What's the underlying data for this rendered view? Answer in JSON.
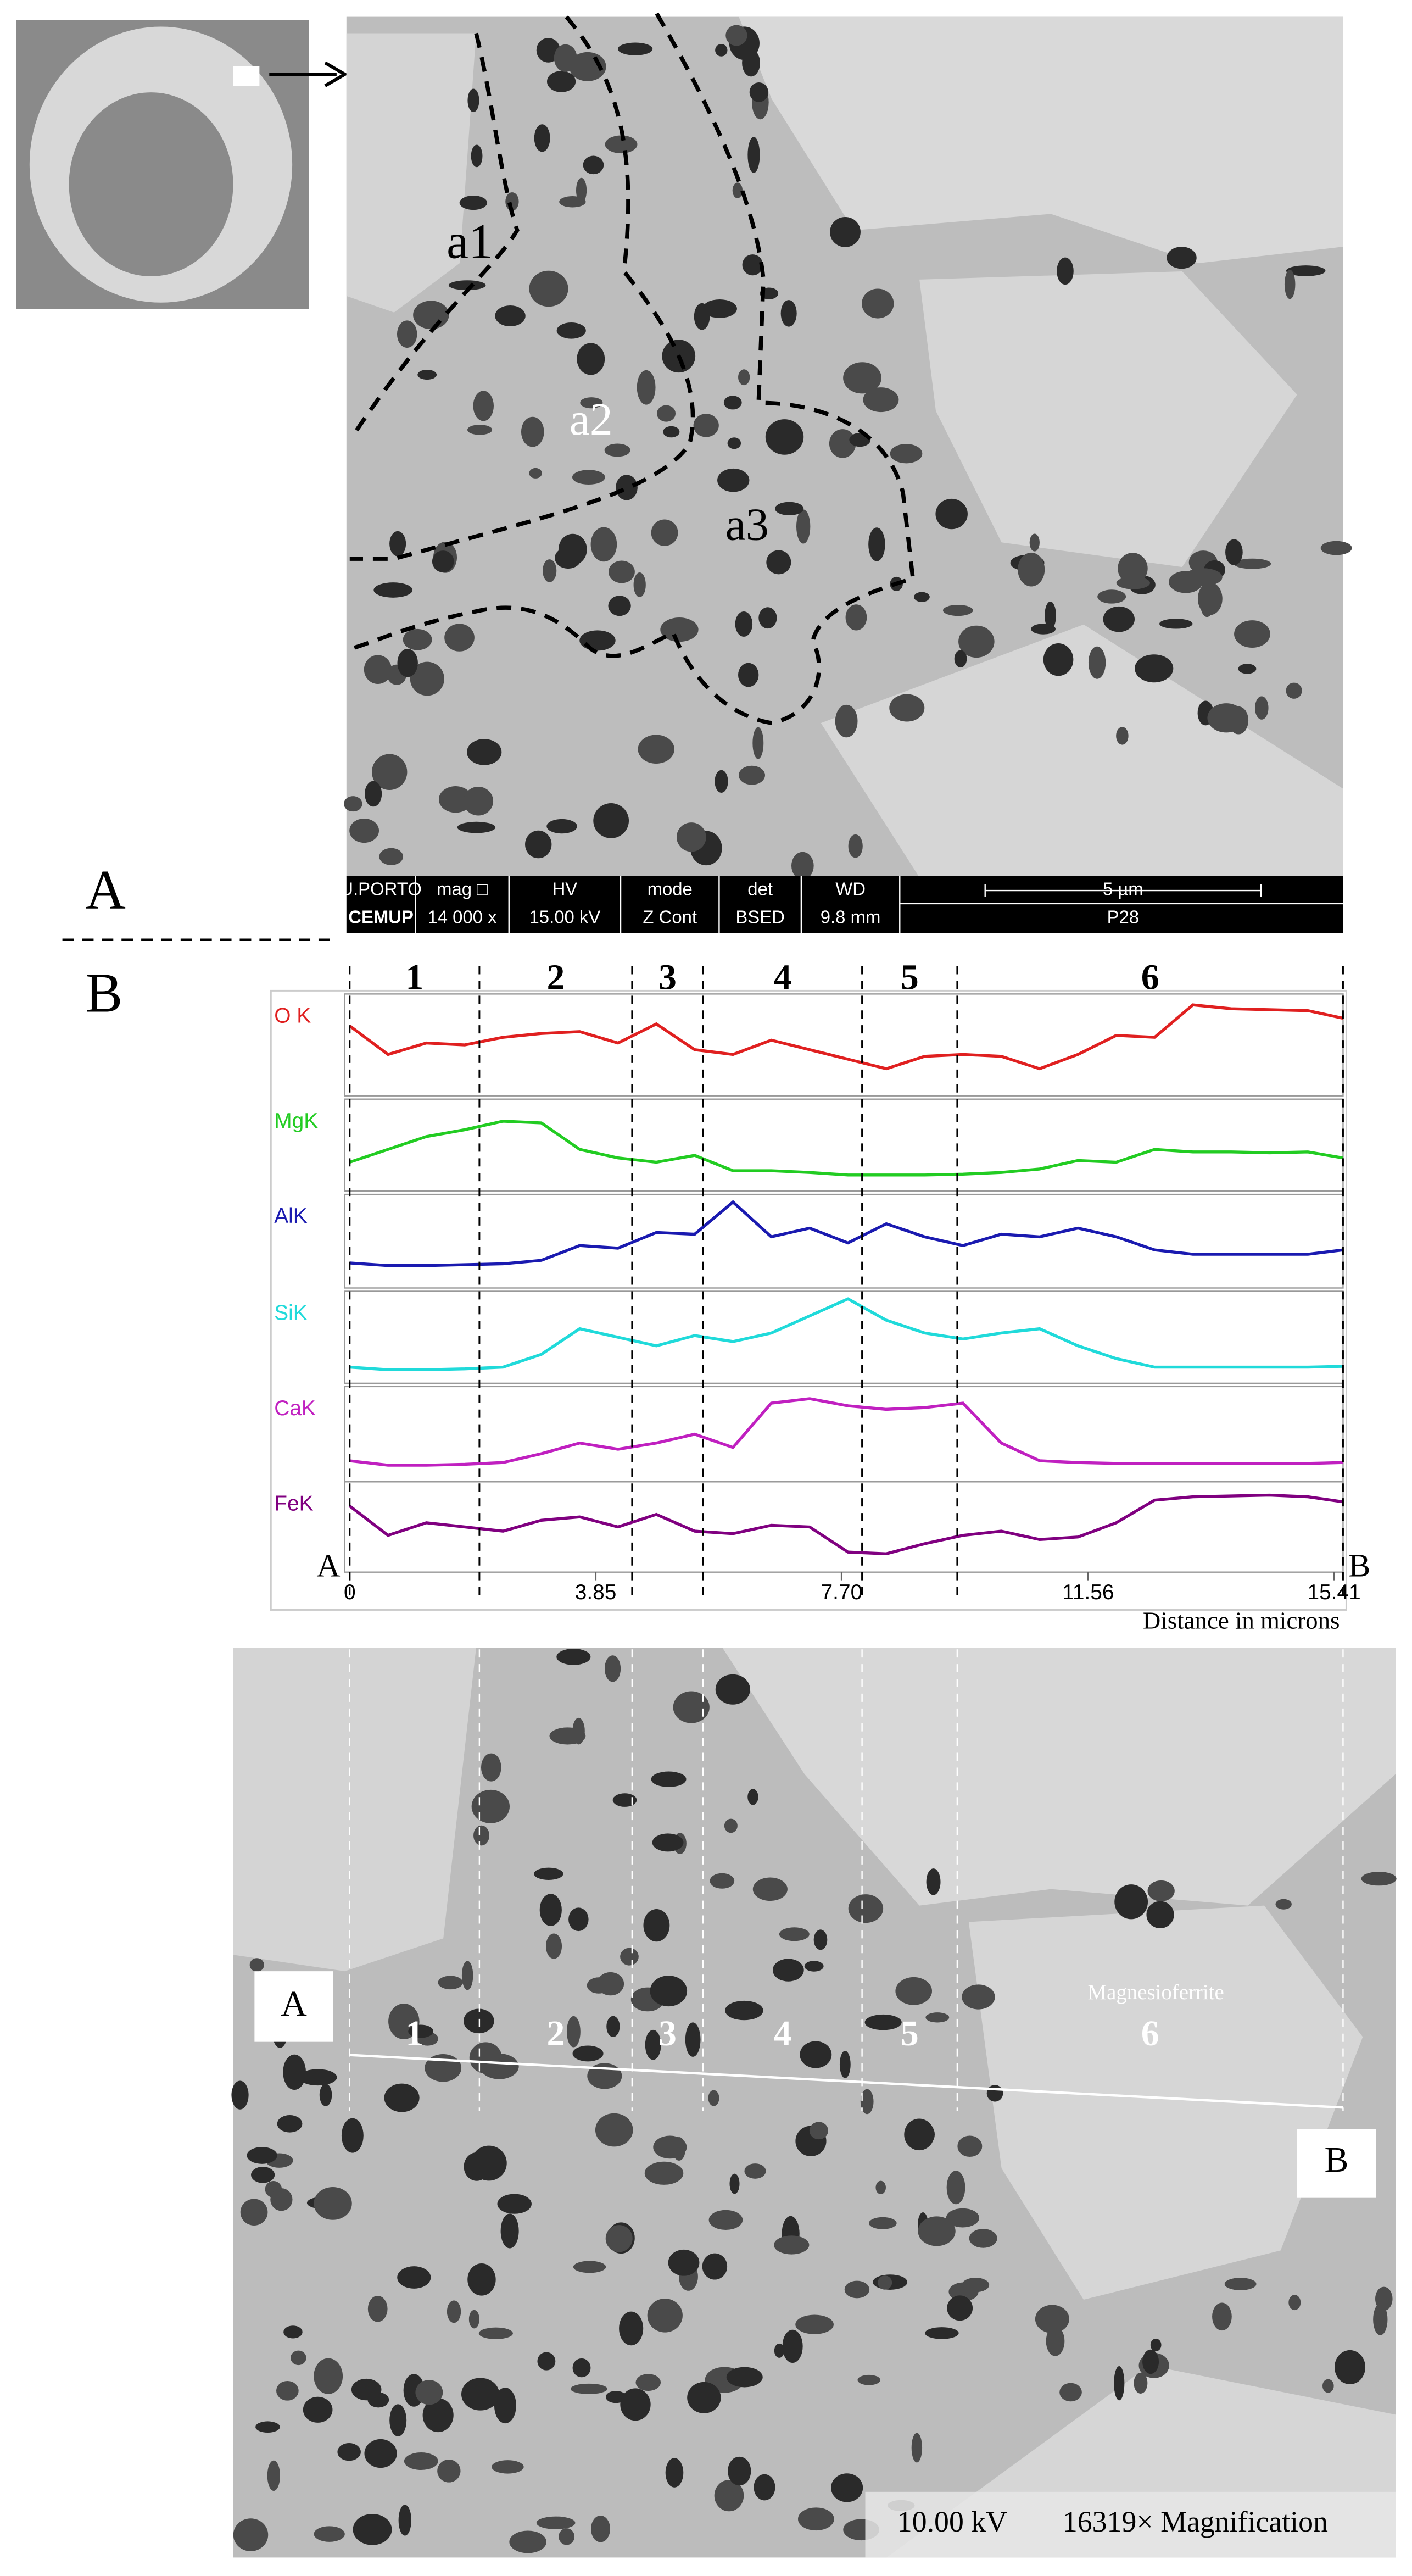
{
  "figure": {
    "panel_a": "A",
    "panel_b": "B",
    "sem_top": {
      "labels": [
        "a1",
        "a2",
        "a3"
      ],
      "info": {
        "logo_top": "U.PORTO",
        "logo_bottom": "CEMUP",
        "headers": [
          "mag □",
          "HV",
          "mode",
          "det",
          "WD"
        ],
        "values": [
          "14 000 x",
          "15.00 kV",
          "Z Cont",
          "BSED",
          "9.8 mm"
        ],
        "scale": "5 µm",
        "sample": "P28"
      }
    },
    "sem_bottom": {
      "start": "A",
      "end": "B",
      "phase": "Magnesioferrite",
      "voltage": "10.00 kV",
      "magnification": "16319× Magnification"
    }
  },
  "chart_data": {
    "type": "line",
    "x_label": "Distance in microns",
    "start_label": "A",
    "end_label": "B",
    "x": [
      0,
      0.6,
      1.2,
      1.8,
      2.4,
      3.0,
      3.6,
      4.2,
      4.8,
      5.4,
      6.0,
      6.6,
      7.2,
      7.8,
      8.4,
      9.0,
      9.6,
      10.2,
      10.8,
      11.4,
      12.0,
      12.6,
      13.2,
      13.8,
      14.4,
      15.0,
      15.55
    ],
    "xlim": [
      0,
      15.55
    ],
    "xticks": [
      0,
      3.85,
      {
        "value": 7.7,
        "label": "7.70"
      },
      11.56,
      15.41
    ],
    "ylim": [
      0,
      100
    ],
    "regions": [
      {
        "label": "1",
        "from": 0,
        "to": 2.03
      },
      {
        "label": "2",
        "from": 2.03,
        "to": 4.42
      },
      {
        "label": "3",
        "from": 4.42,
        "to": 5.53
      },
      {
        "label": "4",
        "from": 5.53,
        "to": 8.02
      },
      {
        "label": "5",
        "from": 8.02,
        "to": 9.51
      },
      {
        "label": "6",
        "from": 9.51,
        "to": 15.55
      }
    ],
    "series": [
      {
        "name": "O K",
        "color": "#e02020",
        "values": [
          70,
          40,
          52,
          50,
          58,
          62,
          64,
          52,
          72,
          45,
          40,
          55,
          45,
          35,
          25,
          38,
          40,
          38,
          25,
          40,
          60,
          58,
          92,
          88,
          87,
          86,
          78
        ]
      },
      {
        "name": "MgK",
        "color": "#22cc22",
        "values": [
          30,
          45,
          60,
          68,
          78,
          76,
          45,
          35,
          30,
          38,
          20,
          20,
          18,
          15,
          15,
          15,
          16,
          18,
          22,
          32,
          30,
          45,
          42,
          42,
          41,
          42,
          35
        ]
      },
      {
        "name": "AlK",
        "color": "#1a1ab0",
        "values": [
          25,
          22,
          22,
          23,
          24,
          28,
          45,
          42,
          60,
          58,
          95,
          55,
          65,
          48,
          70,
          55,
          45,
          58,
          55,
          65,
          55,
          40,
          35,
          35,
          35,
          35,
          40
        ]
      },
      {
        "name": "SiK",
        "color": "#20dada",
        "values": [
          15,
          12,
          12,
          13,
          15,
          30,
          60,
          50,
          40,
          52,
          45,
          55,
          75,
          95,
          70,
          55,
          48,
          55,
          60,
          40,
          25,
          15,
          15,
          15,
          15,
          15,
          16
        ]
      },
      {
        "name": "CaK",
        "color": "#c020c0",
        "values": [
          20,
          15,
          15,
          16,
          18,
          28,
          40,
          33,
          40,
          50,
          35,
          85,
          90,
          82,
          78,
          80,
          85,
          40,
          20,
          18,
          17,
          17,
          17,
          17,
          17,
          17,
          18
        ]
      },
      {
        "name": "FeK",
        "color": "#800080",
        "values": [
          75,
          40,
          55,
          50,
          45,
          58,
          62,
          50,
          65,
          45,
          42,
          52,
          50,
          20,
          18,
          30,
          40,
          45,
          35,
          38,
          55,
          82,
          86,
          87,
          88,
          86,
          80
        ]
      }
    ]
  }
}
